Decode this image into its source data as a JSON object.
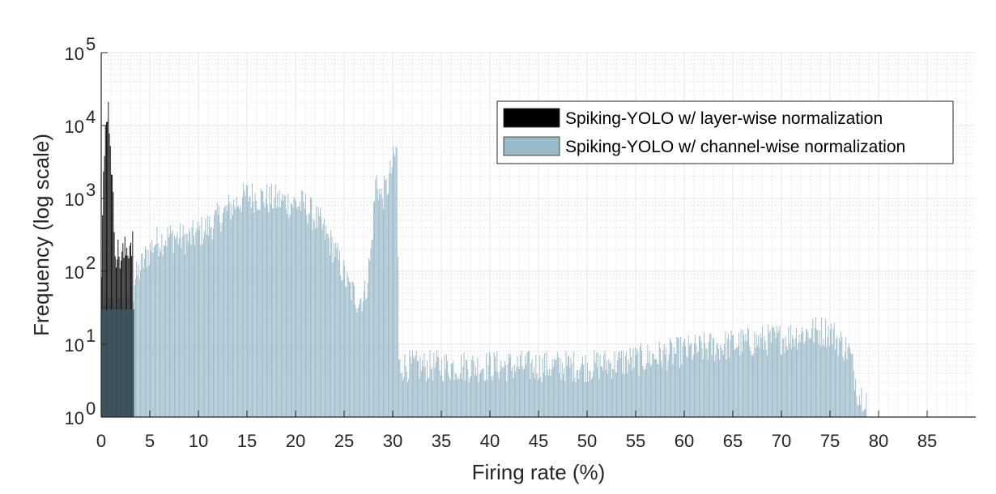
{
  "chart_data": {
    "type": "bar",
    "title": "",
    "xlabel": "Firing rate (%)",
    "ylabel": "Frequency (log scale)",
    "xlim": [
      0,
      90
    ],
    "ylim": [
      1,
      100000
    ],
    "y_scale": "log",
    "x_ticks": [
      "0",
      "5",
      "10",
      "15",
      "20",
      "25",
      "30",
      "35",
      "40",
      "45",
      "50",
      "55",
      "60",
      "65",
      "70",
      "75",
      "80",
      "85"
    ],
    "y_ticks": [
      {
        "base": "10",
        "exp": "0"
      },
      {
        "base": "10",
        "exp": "1"
      },
      {
        "base": "10",
        "exp": "2"
      },
      {
        "base": "10",
        "exp": "3"
      },
      {
        "base": "10",
        "exp": "4"
      },
      {
        "base": "10",
        "exp": "5"
      }
    ],
    "grid": true,
    "legend_position": "top-right",
    "bin_width": 0.1,
    "series": [
      {
        "name": "Spiking-YOLO w/ layer-wise normalization",
        "color": "#000000",
        "profile": [
          [
            0.0,
            40
          ],
          [
            0.2,
            1000
          ],
          [
            0.4,
            6000
          ],
          [
            0.6,
            20000
          ],
          [
            0.8,
            15000
          ],
          [
            1.0,
            5000
          ],
          [
            1.2,
            1000
          ],
          [
            1.5,
            200
          ],
          [
            2.0,
            150
          ],
          [
            2.5,
            180
          ],
          [
            3.0,
            250
          ],
          [
            3.3,
            300
          ]
        ]
      },
      {
        "name": "Spiking-YOLO w/ channel-wise normalization",
        "color": "#9ab9c8",
        "profile": [
          [
            0.0,
            30
          ],
          [
            3.3,
            30
          ],
          [
            3.4,
            70
          ],
          [
            4.5,
            150
          ],
          [
            5.5,
            250
          ],
          [
            7.0,
            300
          ],
          [
            9.0,
            280
          ],
          [
            11.0,
            400
          ],
          [
            13.0,
            700
          ],
          [
            15.0,
            1100
          ],
          [
            17.0,
            1000
          ],
          [
            19.0,
            900
          ],
          [
            21.0,
            800
          ],
          [
            22.5,
            450
          ],
          [
            24.0,
            200
          ],
          [
            25.5,
            60
          ],
          [
            26.5,
            40
          ],
          [
            27.2,
            50
          ],
          [
            27.8,
            200
          ],
          [
            28.3,
            2000
          ],
          [
            28.8,
            1000
          ],
          [
            29.5,
            1500
          ],
          [
            30.0,
            3000
          ],
          [
            30.5,
            5000
          ],
          [
            30.6,
            5
          ],
          [
            40.0,
            5
          ],
          [
            50.0,
            5
          ],
          [
            55.0,
            6
          ],
          [
            60.0,
            8
          ],
          [
            65.0,
            10
          ],
          [
            70.0,
            12
          ],
          [
            73.0,
            15
          ],
          [
            75.0,
            15
          ],
          [
            77.0,
            8
          ],
          [
            78.0,
            2
          ],
          [
            78.8,
            2
          ]
        ]
      }
    ]
  }
}
